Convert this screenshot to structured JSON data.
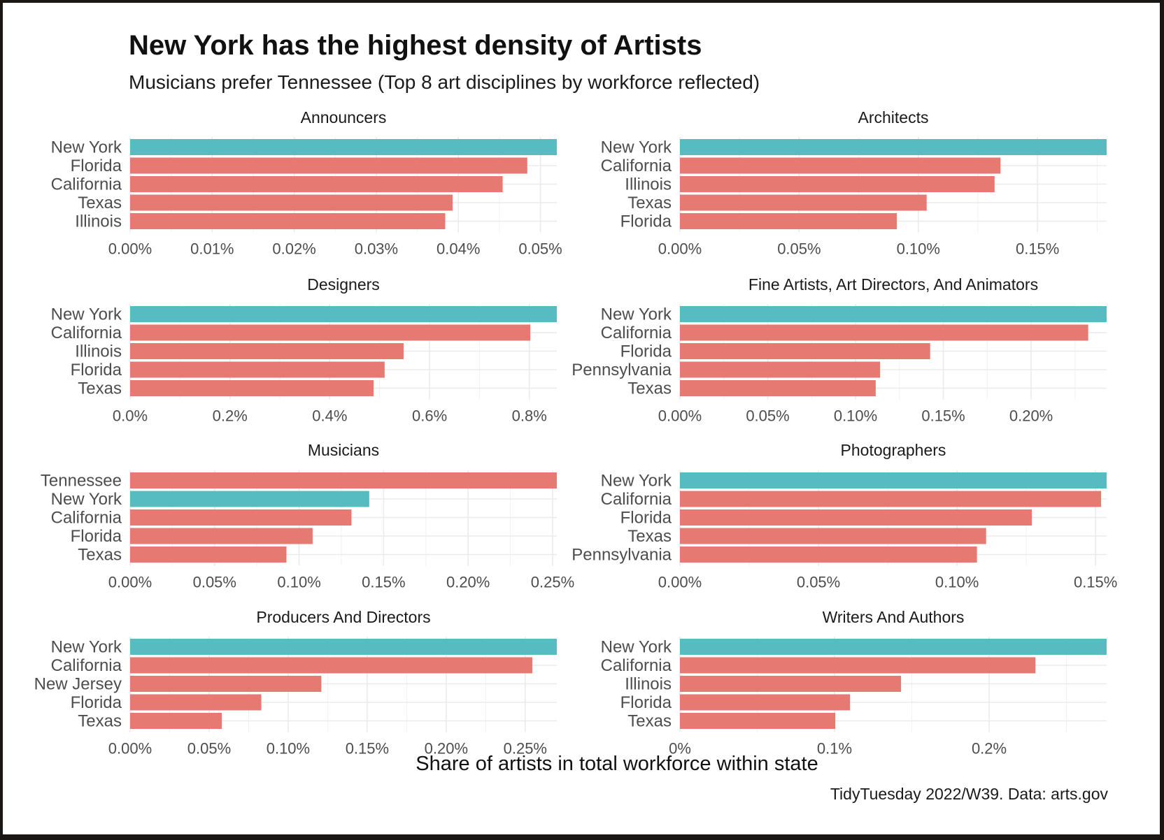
{
  "chart_data": {
    "type": "bar",
    "orientation": "horizontal",
    "title": "New York has the highest density of Artists",
    "subtitle": "Musicians prefer Tennessee (Top 8 art disciplines by workforce reflected)",
    "xlabel": "Share of artists in total workforce within state",
    "caption": "TidyTuesday 2022/W39. Data: arts.gov",
    "colors": {
      "highlight": "#56bcc2",
      "other": "#e67a72"
    },
    "highlight_category": "New York",
    "grid": true,
    "panels": [
      {
        "title": "Announcers",
        "categories": [
          "New York",
          "Florida",
          "California",
          "Texas",
          "Illinois"
        ],
        "values": [
          0.052,
          0.0484,
          0.0454,
          0.0393,
          0.0384
        ],
        "xlim": [
          0,
          0.052
        ],
        "ticks": [
          0,
          0.01,
          0.02,
          0.03,
          0.04,
          0.05
        ],
        "tick_labels": [
          "0.00%",
          "0.01%",
          "0.02%",
          "0.03%",
          "0.04%",
          "0.05%"
        ]
      },
      {
        "title": "Architects",
        "categories": [
          "New York",
          "California",
          "Illinois",
          "Texas",
          "Florida"
        ],
        "values": [
          0.179,
          0.1345,
          0.132,
          0.1035,
          0.091
        ],
        "xlim": [
          0,
          0.179
        ],
        "ticks": [
          0,
          0.05,
          0.1,
          0.15
        ],
        "tick_labels": [
          "0.00%",
          "0.05%",
          "0.10%",
          "0.15%"
        ]
      },
      {
        "title": "Designers",
        "categories": [
          "New York",
          "California",
          "Illinois",
          "Florida",
          "Texas"
        ],
        "values": [
          0.855,
          0.802,
          0.548,
          0.51,
          0.488
        ],
        "xlim": [
          0,
          0.855
        ],
        "ticks": [
          0,
          0.2,
          0.4,
          0.6,
          0.8
        ],
        "tick_labels": [
          "0.0%",
          "0.2%",
          "0.4%",
          "0.6%",
          "0.8%"
        ]
      },
      {
        "title": "Fine Artists, Art Directors, And Animators",
        "categories": [
          "New York",
          "California",
          "Florida",
          "Pennsylvania",
          "Texas"
        ],
        "values": [
          0.243,
          0.2325,
          0.1425,
          0.114,
          0.1115
        ],
        "xlim": [
          0,
          0.243
        ],
        "ticks": [
          0,
          0.05,
          0.1,
          0.15,
          0.2
        ],
        "tick_labels": [
          "0.00%",
          "0.05%",
          "0.10%",
          "0.15%",
          "0.20%"
        ]
      },
      {
        "title": "Musicians",
        "categories": [
          "Tennessee",
          "New York",
          "California",
          "Florida",
          "Texas"
        ],
        "values": [
          0.2525,
          0.1415,
          0.131,
          0.108,
          0.0925
        ],
        "xlim": [
          0,
          0.2525
        ],
        "ticks": [
          0,
          0.05,
          0.1,
          0.15,
          0.2,
          0.25
        ],
        "tick_labels": [
          "0.00%",
          "0.05%",
          "0.10%",
          "0.15%",
          "0.20%",
          "0.25%"
        ]
      },
      {
        "title": "Photographers",
        "categories": [
          "New York",
          "California",
          "Florida",
          "Texas",
          "Pennsylvania"
        ],
        "values": [
          0.154,
          0.152,
          0.127,
          0.1105,
          0.1072
        ],
        "xlim": [
          0,
          0.154
        ],
        "ticks": [
          0,
          0.05,
          0.1,
          0.15
        ],
        "tick_labels": [
          "0.00%",
          "0.05%",
          "0.10%",
          "0.15%"
        ]
      },
      {
        "title": "Producers And Directors",
        "categories": [
          "New York",
          "California",
          "New Jersey",
          "Florida",
          "Texas"
        ],
        "values": [
          0.27,
          0.2545,
          0.121,
          0.083,
          0.058
        ],
        "xlim": [
          0,
          0.27
        ],
        "ticks": [
          0,
          0.05,
          0.1,
          0.15,
          0.2,
          0.25
        ],
        "tick_labels": [
          "0.00%",
          "0.05%",
          "0.10%",
          "0.15%",
          "0.20%",
          "0.25%"
        ]
      },
      {
        "title": "Writers And Authors",
        "categories": [
          "New York",
          "California",
          "Illinois",
          "Florida",
          "Texas"
        ],
        "values": [
          0.276,
          0.23,
          0.143,
          0.11,
          0.1005
        ],
        "xlim": [
          0,
          0.276
        ],
        "ticks": [
          0,
          0.1,
          0.2
        ],
        "tick_labels": [
          "0%",
          "0.1%",
          "0.2%"
        ]
      }
    ]
  }
}
